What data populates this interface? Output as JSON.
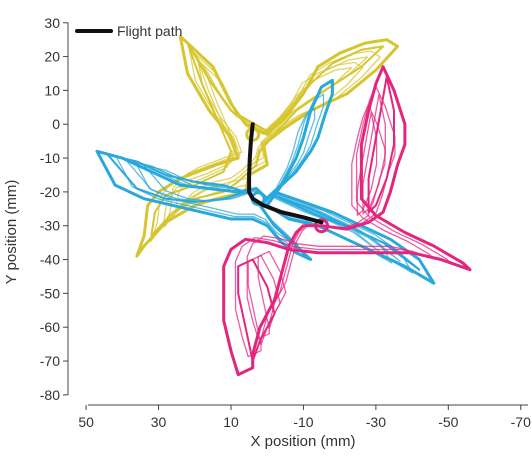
{
  "chart_data": {
    "type": "line",
    "xlabel": "X position (mm)",
    "ylabel": "Y position (mm)",
    "xlim": [
      55,
      -72
    ],
    "ylim": [
      -83,
      32
    ],
    "x_ticks": [
      "50",
      "30",
      "10",
      "-10",
      "-30",
      "-50",
      "-70"
    ],
    "y_ticks": [
      "30",
      "20",
      "10",
      "0",
      "-10",
      "-20",
      "-30",
      "-40",
      "-50",
      "-60",
      "-70",
      "-80"
    ],
    "x_tick_values": [
      50,
      30,
      10,
      -10,
      -30,
      -50,
      -70
    ],
    "y_tick_values": [
      30,
      20,
      10,
      0,
      -10,
      -20,
      -30,
      -40,
      -50,
      -60,
      -70,
      -80
    ],
    "grid": false,
    "legend": "top-left",
    "series": [
      {
        "name": "Flight path",
        "color": "#111111",
        "points": [
          [
            4,
            0
          ],
          [
            4.5,
            -5
          ],
          [
            4.8,
            -10
          ],
          [
            5,
            -15
          ],
          [
            5,
            -20
          ],
          [
            4,
            -22
          ],
          [
            1,
            -24
          ],
          [
            -4,
            -26
          ],
          [
            -10,
            -27.5
          ],
          [
            -15,
            -29
          ]
        ]
      }
    ],
    "figures": [
      {
        "color": "#d6c52e",
        "center": [
          4,
          -3
        ],
        "outlines": [
          [
            [
              24,
              26
            ],
            [
              15,
              17
            ],
            [
              10,
              6
            ],
            [
              6,
              0
            ],
            [
              0,
              -3
            ],
            [
              -5,
              2
            ],
            [
              -10,
              9
            ],
            [
              -14,
              17
            ],
            [
              -20,
              21
            ],
            [
              -27,
              24
            ],
            [
              -33,
              25
            ],
            [
              -36,
              23
            ],
            [
              -30,
              16
            ],
            [
              -22,
              9
            ],
            [
              -12,
              4
            ],
            [
              -5,
              -1
            ],
            [
              1,
              -6
            ],
            [
              0,
              -12
            ],
            [
              5,
              -15
            ],
            [
              6,
              -20
            ],
            [
              14,
              -22
            ],
            [
              20,
              -24
            ],
            [
              28,
              -29
            ],
            [
              34,
              -36
            ],
            [
              36,
              -39
            ],
            [
              34,
              -33
            ],
            [
              33,
              -24
            ],
            [
              30,
              -20
            ],
            [
              24,
              -16
            ],
            [
              14,
              -12
            ],
            [
              8,
              -10
            ],
            [
              10,
              -4
            ],
            [
              16,
              4
            ],
            [
              22,
              15
            ],
            [
              24,
              26
            ]
          ],
          [
            [
              22,
              24
            ],
            [
              16,
              13
            ],
            [
              10,
              4
            ],
            [
              5,
              1
            ],
            [
              0,
              -2
            ],
            [
              -6,
              4
            ],
            [
              -12,
              12
            ],
            [
              -18,
              18
            ],
            [
              -26,
              22
            ],
            [
              -32,
              23
            ],
            [
              -26,
              17
            ],
            [
              -16,
              10
            ],
            [
              -8,
              4
            ],
            [
              -2,
              -3
            ],
            [
              2,
              -8
            ],
            [
              3,
              -12
            ],
            [
              8,
              -17
            ],
            [
              12,
              -20
            ],
            [
              20,
              -22
            ],
            [
              26,
              -26
            ],
            [
              32,
              -33
            ],
            [
              31,
              -26
            ],
            [
              28,
              -21
            ],
            [
              20,
              -18
            ],
            [
              12,
              -14
            ],
            [
              10,
              -8
            ],
            [
              14,
              2
            ],
            [
              18,
              12
            ],
            [
              22,
              24
            ]
          ]
        ]
      },
      {
        "color": "#2aa8db",
        "center": [
          2.5,
          -22
        ],
        "outlines": [
          [
            [
              47,
              -8
            ],
            [
              40,
              -10
            ],
            [
              32,
              -14
            ],
            [
              24,
              -18
            ],
            [
              16,
              -19
            ],
            [
              8,
              -20
            ],
            [
              3,
              -19
            ],
            [
              0,
              -22
            ],
            [
              -4,
              -18
            ],
            [
              -8,
              -14
            ],
            [
              -12,
              -8
            ],
            [
              -14,
              -4
            ],
            [
              -16,
              3
            ],
            [
              -18,
              9
            ],
            [
              -18,
              13
            ],
            [
              -15,
              11
            ],
            [
              -12,
              4
            ],
            [
              -10,
              -4
            ],
            [
              -8,
              -10
            ],
            [
              -4,
              -18
            ],
            [
              0,
              -24
            ],
            [
              -6,
              -28
            ],
            [
              -14,
              -30
            ],
            [
              -22,
              -34
            ],
            [
              -30,
              -38
            ],
            [
              -38,
              -42
            ],
            [
              -46,
              -47
            ],
            [
              -42,
              -40
            ],
            [
              -34,
              -34
            ],
            [
              -26,
              -30
            ],
            [
              -18,
              -26
            ],
            [
              -10,
              -23
            ],
            [
              -2,
              -20
            ],
            [
              2,
              -24
            ],
            [
              -2,
              -30
            ],
            [
              -6,
              -34
            ],
            [
              -10,
              -38
            ],
            [
              -12,
              -40
            ],
            [
              -8,
              -38
            ],
            [
              -4,
              -35
            ],
            [
              0,
              -30
            ],
            [
              4,
              -28
            ],
            [
              10,
              -28
            ],
            [
              18,
              -26
            ],
            [
              26,
              -24
            ],
            [
              34,
              -22
            ],
            [
              42,
              -18
            ],
            [
              47,
              -8
            ]
          ],
          [
            [
              44,
              -9
            ],
            [
              36,
              -11
            ],
            [
              28,
              -15
            ],
            [
              20,
              -17
            ],
            [
              12,
              -18
            ],
            [
              6,
              -20
            ],
            [
              12,
              -22
            ],
            [
              20,
              -23
            ],
            [
              28,
              -22
            ],
            [
              36,
              -19
            ],
            [
              44,
              -9
            ]
          ],
          [
            [
              -2,
              -21
            ],
            [
              -12,
              -25
            ],
            [
              -22,
              -30
            ],
            [
              -32,
              -35
            ],
            [
              -42,
              -43
            ],
            [
              -34,
              -36
            ],
            [
              -24,
              -31
            ],
            [
              -14,
              -27
            ],
            [
              -2,
              -21
            ]
          ]
        ]
      },
      {
        "color": "#e3267d",
        "center": [
          -15,
          -30
        ],
        "outlines": [
          [
            [
              -32,
              17
            ],
            [
              -35,
              10
            ],
            [
              -38,
              0
            ],
            [
              -38,
              -6
            ],
            [
              -36,
              -12
            ],
            [
              -34,
              -20
            ],
            [
              -32,
              -26
            ],
            [
              -28,
              -29
            ],
            [
              -22,
              -31
            ],
            [
              -15,
              -30
            ],
            [
              -10,
              -30
            ],
            [
              -8,
              -32
            ],
            [
              -6,
              -36
            ],
            [
              -4,
              -44
            ],
            [
              -2,
              -52
            ],
            [
              2,
              -60
            ],
            [
              4,
              -68
            ],
            [
              4,
              -72
            ],
            [
              8,
              -74
            ],
            [
              10,
              -67
            ],
            [
              12,
              -58
            ],
            [
              12,
              -50
            ],
            [
              12,
              -42
            ],
            [
              10,
              -37
            ],
            [
              6,
              -34
            ],
            [
              0,
              -35
            ],
            [
              -6,
              -37
            ],
            [
              -14,
              -38
            ],
            [
              -22,
              -38
            ],
            [
              -30,
              -38
            ],
            [
              -40,
              -38
            ],
            [
              -48,
              -40
            ],
            [
              -56,
              -43
            ],
            [
              -54,
              -41
            ],
            [
              -46,
              -36
            ],
            [
              -38,
              -32
            ],
            [
              -30,
              -27
            ],
            [
              -26,
              -22
            ],
            [
              -26,
              -14
            ],
            [
              -26,
              -6
            ],
            [
              -28,
              4
            ],
            [
              -30,
              12
            ],
            [
              -32,
              17
            ]
          ],
          [
            [
              -33,
              14
            ],
            [
              -35,
              4
            ],
            [
              -35,
              -6
            ],
            [
              -33,
              -16
            ],
            [
              -30,
              -24
            ],
            [
              -28,
              -26
            ],
            [
              -28,
              -16
            ],
            [
              -30,
              -4
            ],
            [
              -32,
              8
            ],
            [
              -33,
              14
            ]
          ],
          [
            [
              4,
              -70
            ],
            [
              6,
              -60
            ],
            [
              8,
              -50
            ],
            [
              8,
              -42
            ],
            [
              4,
              -40
            ],
            [
              0,
              -48
            ],
            [
              -2,
              -56
            ],
            [
              2,
              -64
            ],
            [
              4,
              -70
            ]
          ]
        ]
      }
    ]
  }
}
